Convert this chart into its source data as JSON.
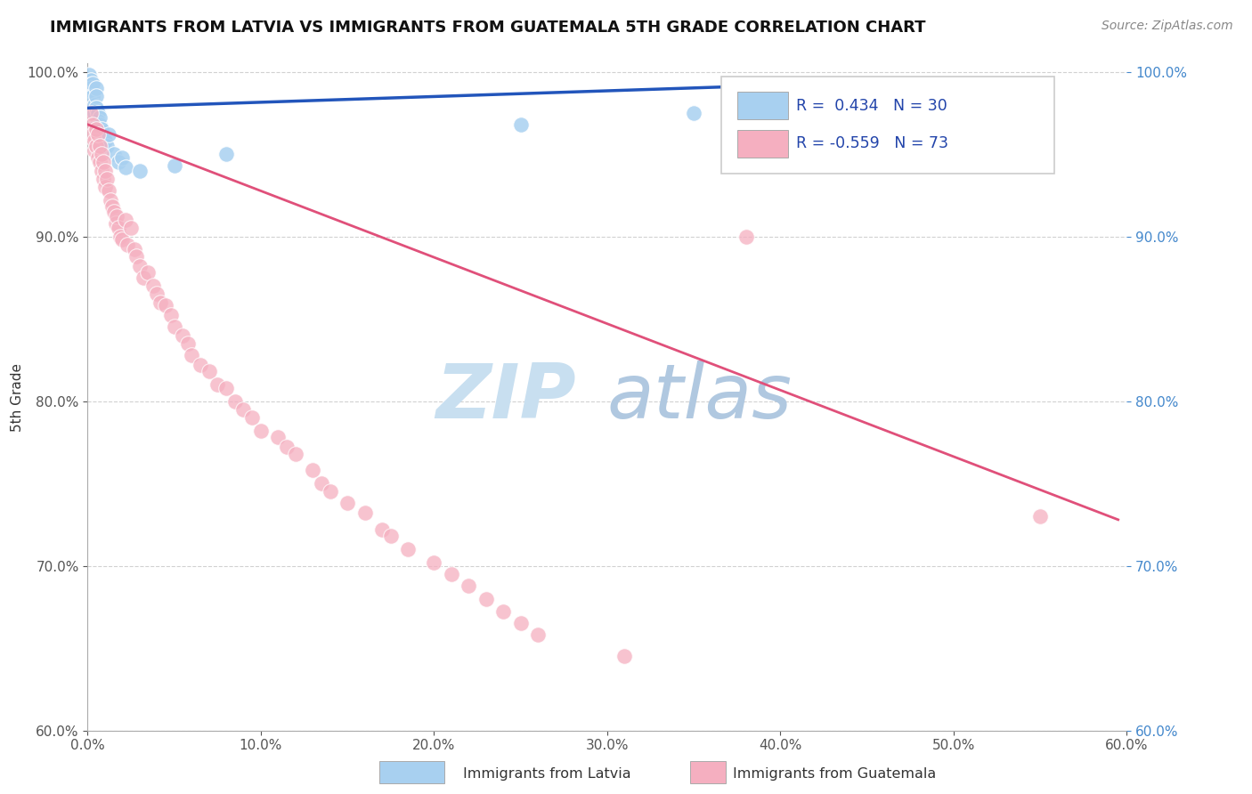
{
  "title": "IMMIGRANTS FROM LATVIA VS IMMIGRANTS FROM GUATEMALA 5TH GRADE CORRELATION CHART",
  "source": "Source: ZipAtlas.com",
  "ylabel": "5th Grade",
  "legend_latvia": "Immigrants from Latvia",
  "legend_guatemala": "Immigrants from Guatemala",
  "R_latvia": 0.434,
  "N_latvia": 30,
  "R_guatemala": -0.559,
  "N_guatemala": 73,
  "xmin": 0.0,
  "xmax": 0.6,
  "ymin": 0.6,
  "ymax": 1.005,
  "color_latvia": "#a8d0f0",
  "color_guatemala": "#f5afc0",
  "line_color_latvia": "#2255bb",
  "line_color_guatemala": "#e0507a",
  "background_color": "#ffffff",
  "grid_color": "#cccccc",
  "watermark_zip": "ZIP",
  "watermark_atlas": "atlas",
  "watermark_color_zip": "#c8dff0",
  "watermark_color_atlas": "#b0c8e0",
  "latvia_x": [
    0.001,
    0.002,
    0.002,
    0.002,
    0.003,
    0.003,
    0.003,
    0.004,
    0.004,
    0.005,
    0.005,
    0.005,
    0.006,
    0.006,
    0.007,
    0.007,
    0.008,
    0.009,
    0.01,
    0.011,
    0.012,
    0.015,
    0.018,
    0.02,
    0.022,
    0.03,
    0.05,
    0.08,
    0.25,
    0.35
  ],
  "latvia_y": [
    0.998,
    0.995,
    0.992,
    0.99,
    0.988,
    0.993,
    0.985,
    0.98,
    0.975,
    0.99,
    0.985,
    0.978,
    0.975,
    0.97,
    0.968,
    0.972,
    0.965,
    0.96,
    0.958,
    0.955,
    0.962,
    0.95,
    0.945,
    0.948,
    0.942,
    0.94,
    0.943,
    0.95,
    0.968,
    0.975
  ],
  "guatemala_x": [
    0.002,
    0.003,
    0.003,
    0.004,
    0.004,
    0.005,
    0.005,
    0.006,
    0.006,
    0.007,
    0.007,
    0.008,
    0.008,
    0.009,
    0.009,
    0.01,
    0.01,
    0.011,
    0.012,
    0.013,
    0.014,
    0.015,
    0.016,
    0.017,
    0.018,
    0.019,
    0.02,
    0.022,
    0.023,
    0.025,
    0.027,
    0.028,
    0.03,
    0.032,
    0.035,
    0.038,
    0.04,
    0.042,
    0.045,
    0.048,
    0.05,
    0.055,
    0.058,
    0.06,
    0.065,
    0.07,
    0.075,
    0.08,
    0.085,
    0.09,
    0.095,
    0.1,
    0.11,
    0.115,
    0.12,
    0.13,
    0.135,
    0.14,
    0.15,
    0.16,
    0.17,
    0.175,
    0.185,
    0.2,
    0.21,
    0.22,
    0.23,
    0.24,
    0.25,
    0.26,
    0.55,
    0.38,
    0.31
  ],
  "guatemala_y": [
    0.975,
    0.968,
    0.962,
    0.958,
    0.952,
    0.965,
    0.955,
    0.962,
    0.948,
    0.955,
    0.945,
    0.95,
    0.94,
    0.945,
    0.935,
    0.94,
    0.93,
    0.935,
    0.928,
    0.922,
    0.918,
    0.915,
    0.908,
    0.912,
    0.905,
    0.9,
    0.898,
    0.91,
    0.895,
    0.905,
    0.892,
    0.888,
    0.882,
    0.875,
    0.878,
    0.87,
    0.865,
    0.86,
    0.858,
    0.852,
    0.845,
    0.84,
    0.835,
    0.828,
    0.822,
    0.818,
    0.81,
    0.808,
    0.8,
    0.795,
    0.79,
    0.782,
    0.778,
    0.772,
    0.768,
    0.758,
    0.75,
    0.745,
    0.738,
    0.732,
    0.722,
    0.718,
    0.71,
    0.702,
    0.695,
    0.688,
    0.68,
    0.672,
    0.665,
    0.658,
    0.73,
    0.9,
    0.645
  ],
  "line_lv_x0": 0.0,
  "line_lv_x1": 0.46,
  "line_lv_y0": 0.978,
  "line_lv_y1": 0.994,
  "line_gt_x0": 0.0,
  "line_gt_x1": 0.595,
  "line_gt_y0": 0.968,
  "line_gt_y1": 0.728
}
